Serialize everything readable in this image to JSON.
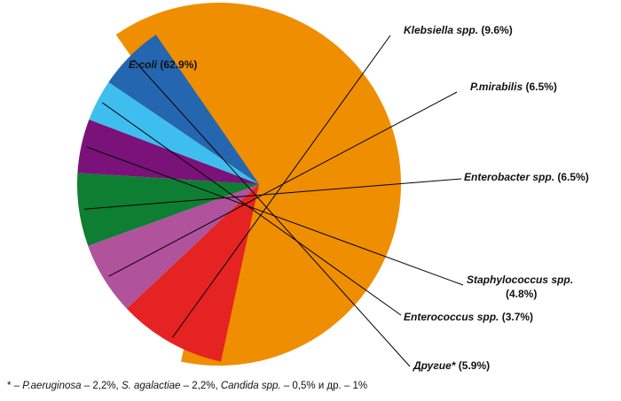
{
  "chart_data": {
    "type": "pie",
    "exploded": "E.coli",
    "slices": [
      {
        "name": "E.coli",
        "value": 62.9,
        "color": "#EF8E00",
        "label_name": "E.coli",
        "label_value": "(62.9%)"
      },
      {
        "name": "Klebsiella spp.",
        "value": 9.6,
        "color": "#E42322",
        "label_name": "Klebsiella spp.",
        "label_value": "(9.6%)"
      },
      {
        "name": "P.mirabilis",
        "value": 6.5,
        "color": "#B0529C",
        "label_name": "P.mirabilis",
        "label_value": "(6.5%)"
      },
      {
        "name": "Enterobacter spp.",
        "value": 6.5,
        "color": "#0E7E32",
        "label_name": "Enterobacter spp.",
        "label_value": "(6.5%)"
      },
      {
        "name": "Staphylococcus spp.",
        "value": 4.8,
        "color": "#7A1279",
        "label_name": "Staphylococcus spp.",
        "label_value": "(4.8%)"
      },
      {
        "name": "Enterococcus spp.",
        "value": 3.7,
        "color": "#3EBEEE",
        "label_name": "Enterococcus spp.",
        "label_value": "(3.7%)"
      },
      {
        "name": "Другие*",
        "value": 5.9,
        "color": "#2566B0",
        "label_name": "Другие*",
        "label_value": "(5.9%)"
      }
    ]
  },
  "footnote": {
    "prefix": "* – ",
    "items": [
      {
        "name": "P.aeruginosa",
        "rest": " – 2,2%, "
      },
      {
        "name": "S. agalactiae",
        "rest": " – 2,2%, "
      },
      {
        "name": "Candida spp.",
        "rest": " – 0,5% и др. – 1%"
      }
    ]
  }
}
